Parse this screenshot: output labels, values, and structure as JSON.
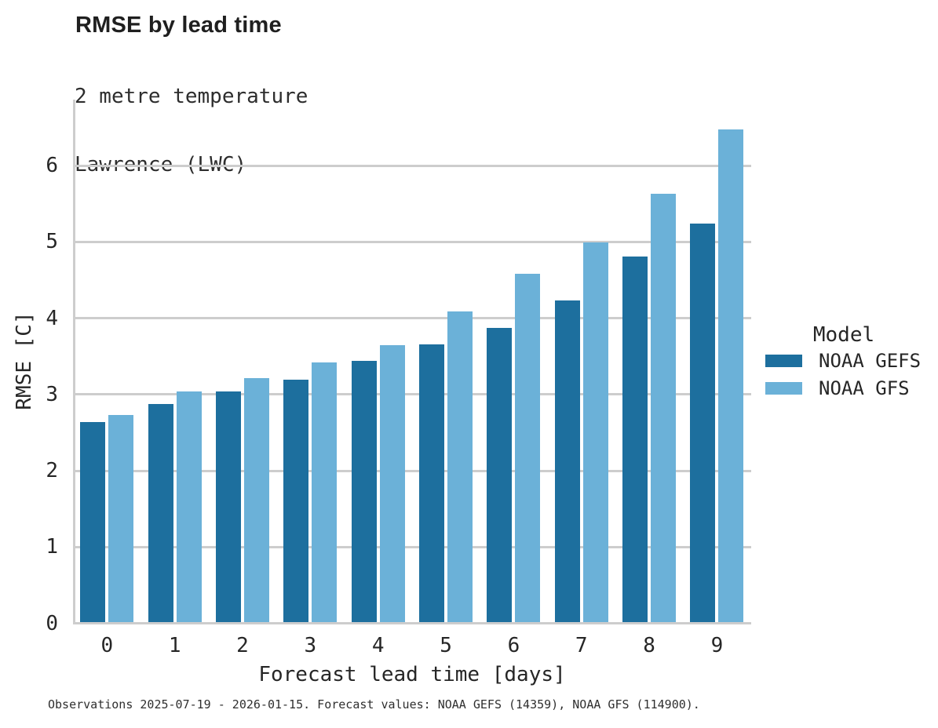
{
  "header": {
    "title": "RMSE by lead time",
    "subtitle1": "2 metre temperature",
    "subtitle2": "Lawrence (LWC)"
  },
  "chart_data": {
    "type": "bar",
    "title": "RMSE by lead time",
    "subtitle": [
      "2 metre temperature",
      "Lawrence (LWC)"
    ],
    "categories": [
      "0",
      "1",
      "2",
      "3",
      "4",
      "5",
      "6",
      "7",
      "8",
      "9"
    ],
    "series": [
      {
        "name": "NOAA GEFS",
        "color": "#1d6f9e",
        "values": [
          2.62,
          2.86,
          3.02,
          3.18,
          3.42,
          3.64,
          3.86,
          4.22,
          4.79,
          5.23
        ]
      },
      {
        "name": "NOAA GFS",
        "color": "#6bb1d8",
        "values": [
          2.72,
          3.02,
          3.2,
          3.4,
          3.63,
          4.07,
          4.57,
          4.98,
          5.62,
          6.46
        ]
      }
    ],
    "xlabel": "Forecast lead time [days]",
    "ylabel": "RMSE [C]",
    "ylim": [
      0,
      6.85
    ],
    "yticks": [
      0,
      1,
      2,
      3,
      4,
      5,
      6
    ],
    "grid": "horizontal",
    "legend_title": "Model",
    "legend_position": "right-center",
    "colors": {
      "grid": "#cdcdcd",
      "spine": "#cdcdcd",
      "background": "#ffffff"
    }
  },
  "caption": "Observations 2025-07-19 - 2026-01-15. Forecast values: NOAA GEFS (14359), NOAA GFS (114900)."
}
